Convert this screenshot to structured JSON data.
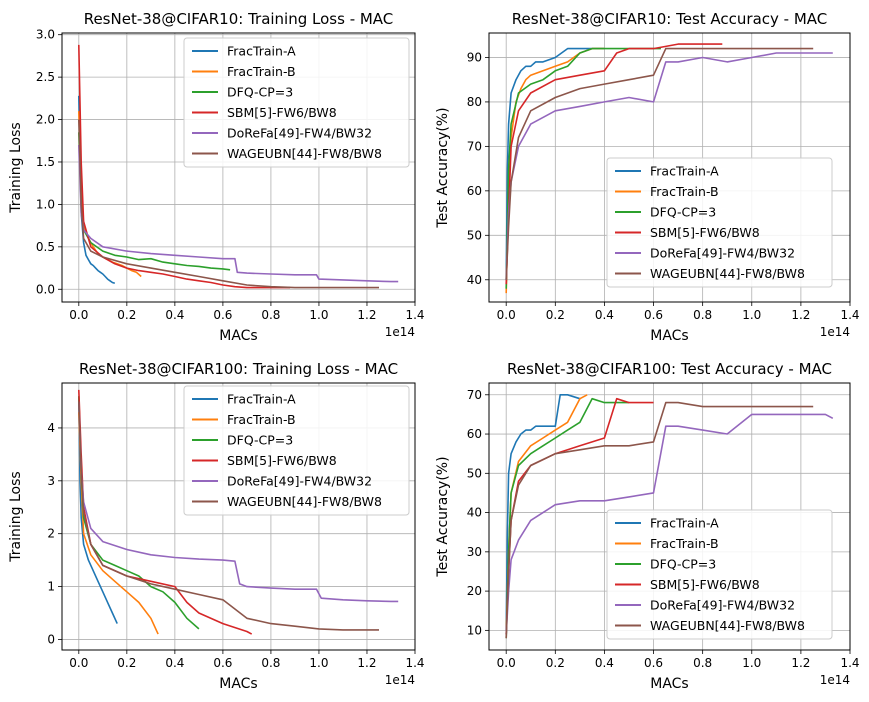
{
  "chart_data": [
    {
      "type": "line",
      "title": "ResNet-38@CIFAR10: Training Loss - MAC",
      "xlabel": "MACs",
      "ylabel": "Training Loss",
      "x_offset_label": "1e14",
      "xlim": [
        -0.07,
        1.4
      ],
      "ylim": [
        -0.15,
        3.02
      ],
      "xticks": [
        0.0,
        0.2,
        0.4,
        0.6,
        0.8,
        1.0,
        1.2,
        1.4
      ],
      "xtick_labels": [
        "0.0",
        "0.2",
        "0.4",
        "0.6",
        "0.8",
        "1.0",
        "1.2",
        "1.4"
      ],
      "yticks": [
        0.0,
        0.5,
        1.0,
        1.5,
        2.0,
        2.5,
        3.0
      ],
      "ytick_labels": [
        "0.0",
        "0.5",
        "1.0",
        "1.5",
        "2.0",
        "2.5",
        "3.0"
      ],
      "grid": true,
      "legend_position": "top-right",
      "series": [
        {
          "name": "FracTrain-A",
          "color": "#1f77b4",
          "x": [
            0.0,
            0.005,
            0.01,
            0.02,
            0.03,
            0.04,
            0.05,
            0.06,
            0.07,
            0.08,
            0.09,
            0.1,
            0.11,
            0.12,
            0.13,
            0.14,
            0.15
          ],
          "y": [
            2.28,
            1.6,
            0.9,
            0.55,
            0.4,
            0.35,
            0.3,
            0.28,
            0.25,
            0.22,
            0.2,
            0.18,
            0.15,
            0.12,
            0.1,
            0.08,
            0.07
          ]
        },
        {
          "name": "FracTrain-B",
          "color": "#ff7f0e",
          "x": [
            0.0,
            0.01,
            0.02,
            0.04,
            0.06,
            0.08,
            0.1,
            0.12,
            0.14,
            0.16,
            0.18,
            0.2,
            0.22,
            0.24,
            0.26
          ],
          "y": [
            2.1,
            1.2,
            0.75,
            0.6,
            0.5,
            0.42,
            0.38,
            0.35,
            0.32,
            0.3,
            0.28,
            0.25,
            0.22,
            0.2,
            0.15
          ]
        },
        {
          "name": "DFQ-CP=3",
          "color": "#2ca02c",
          "x": [
            0.0,
            0.01,
            0.02,
            0.05,
            0.1,
            0.15,
            0.2,
            0.25,
            0.3,
            0.35,
            0.4,
            0.45,
            0.5,
            0.55,
            0.6,
            0.63
          ],
          "y": [
            1.85,
            1.0,
            0.7,
            0.55,
            0.45,
            0.4,
            0.38,
            0.35,
            0.36,
            0.32,
            0.3,
            0.28,
            0.27,
            0.25,
            0.24,
            0.23
          ]
        },
        {
          "name": "SBM[5]-FW6/BW8",
          "color": "#d62728",
          "x": [
            0.0,
            0.01,
            0.02,
            0.05,
            0.1,
            0.15,
            0.2,
            0.25,
            0.3,
            0.35,
            0.4,
            0.45,
            0.5,
            0.55,
            0.6,
            0.65,
            0.7,
            0.75,
            0.8,
            0.85,
            0.88
          ],
          "y": [
            2.88,
            1.5,
            0.8,
            0.5,
            0.38,
            0.3,
            0.25,
            0.22,
            0.2,
            0.18,
            0.15,
            0.12,
            0.1,
            0.08,
            0.05,
            0.03,
            0.02,
            0.02,
            0.02,
            0.02,
            0.02
          ]
        },
        {
          "name": "DoReFa[49]-FW4/BW32",
          "color": "#9467bd",
          "x": [
            0.0,
            0.01,
            0.02,
            0.05,
            0.1,
            0.2,
            0.3,
            0.4,
            0.5,
            0.6,
            0.65,
            0.66,
            0.7,
            0.8,
            0.9,
            0.99,
            1.0,
            1.1,
            1.2,
            1.3,
            1.33
          ],
          "y": [
            1.7,
            0.9,
            0.7,
            0.6,
            0.5,
            0.45,
            0.42,
            0.4,
            0.38,
            0.36,
            0.36,
            0.2,
            0.19,
            0.18,
            0.17,
            0.17,
            0.12,
            0.11,
            0.1,
            0.09,
            0.09
          ]
        },
        {
          "name": "WAGEUBN[44]-FW8/BW8",
          "color": "#8c564b",
          "x": [
            0.0,
            0.01,
            0.02,
            0.05,
            0.1,
            0.2,
            0.3,
            0.4,
            0.5,
            0.6,
            0.7,
            0.8,
            0.9,
            1.0,
            1.1,
            1.2,
            1.25
          ],
          "y": [
            2.0,
            1.0,
            0.6,
            0.45,
            0.38,
            0.3,
            0.25,
            0.2,
            0.15,
            0.1,
            0.05,
            0.03,
            0.02,
            0.02,
            0.02,
            0.02,
            0.02
          ]
        }
      ]
    },
    {
      "type": "line",
      "title": "ResNet-38@CIFAR10: Test Accuracy - MAC",
      "xlabel": "MACs",
      "ylabel": "Test Accuracy(%)",
      "x_offset_label": "1e14",
      "xlim": [
        -0.07,
        1.4
      ],
      "ylim": [
        35,
        95.5
      ],
      "xticks": [
        0.0,
        0.2,
        0.4,
        0.6,
        0.8,
        1.0,
        1.2,
        1.4
      ],
      "xtick_labels": [
        "0.0",
        "0.2",
        "0.4",
        "0.6",
        "0.8",
        "1.0",
        "1.2",
        "1.4"
      ],
      "yticks": [
        40,
        50,
        60,
        70,
        80,
        90
      ],
      "ytick_labels": [
        "40",
        "50",
        "60",
        "70",
        "80",
        "90"
      ],
      "grid": true,
      "legend_position": "bottom-right",
      "series": [
        {
          "name": "FracTrain-A",
          "color": "#1f77b4",
          "x": [
            0.0,
            0.005,
            0.01,
            0.02,
            0.04,
            0.06,
            0.08,
            0.1,
            0.12,
            0.15,
            0.2,
            0.25,
            0.3,
            0.35,
            0.4
          ],
          "y": [
            40,
            65,
            75,
            82,
            85,
            87,
            88,
            88,
            89,
            89,
            90,
            92,
            92,
            92,
            92
          ]
        },
        {
          "name": "FracTrain-B",
          "color": "#ff7f0e",
          "x": [
            0.0,
            0.01,
            0.02,
            0.04,
            0.06,
            0.08,
            0.1,
            0.15,
            0.2,
            0.25,
            0.3,
            0.35,
            0.4
          ],
          "y": [
            37,
            60,
            72,
            80,
            83,
            85,
            86,
            87,
            88,
            89,
            91,
            92,
            92
          ]
        },
        {
          "name": "DFQ-CP=3",
          "color": "#2ca02c",
          "x": [
            0.0,
            0.01,
            0.02,
            0.05,
            0.1,
            0.15,
            0.2,
            0.25,
            0.3,
            0.35,
            0.4,
            0.5,
            0.6,
            0.63
          ],
          "y": [
            38,
            65,
            75,
            82,
            84,
            85,
            87,
            88,
            91,
            92,
            92,
            92,
            92,
            92
          ]
        },
        {
          "name": "SBM[5]-FW6/BW8",
          "color": "#d62728",
          "x": [
            0.0,
            0.01,
            0.02,
            0.05,
            0.1,
            0.2,
            0.3,
            0.4,
            0.45,
            0.5,
            0.6,
            0.7,
            0.8,
            0.88
          ],
          "y": [
            39,
            55,
            70,
            78,
            82,
            85,
            86,
            87,
            91,
            92,
            92,
            93,
            93,
            93
          ]
        },
        {
          "name": "DoReFa[49]-FW4/BW32",
          "color": "#9467bd",
          "x": [
            0.0,
            0.01,
            0.02,
            0.05,
            0.1,
            0.2,
            0.3,
            0.4,
            0.5,
            0.6,
            0.65,
            0.7,
            0.8,
            0.9,
            1.0,
            1.1,
            1.2,
            1.3,
            1.33
          ],
          "y": [
            40,
            55,
            62,
            70,
            75,
            78,
            79,
            80,
            81,
            80,
            89,
            89,
            90,
            89,
            90,
            91,
            91,
            91,
            91
          ]
        },
        {
          "name": "WAGEUBN[44]-FW8/BW8",
          "color": "#8c564b",
          "x": [
            0.0,
            0.01,
            0.02,
            0.05,
            0.1,
            0.2,
            0.3,
            0.4,
            0.5,
            0.6,
            0.65,
            0.7,
            0.8,
            0.9,
            1.0,
            1.1,
            1.2,
            1.25
          ],
          "y": [
            40,
            52,
            62,
            72,
            78,
            81,
            83,
            84,
            85,
            86,
            92,
            92,
            92,
            92,
            92,
            92,
            92,
            92
          ]
        }
      ]
    },
    {
      "type": "line",
      "title": "ResNet-38@CIFAR100: Training Loss - MAC",
      "xlabel": "MACs",
      "ylabel": "Training Loss",
      "x_offset_label": "1e14",
      "xlim": [
        -0.07,
        1.4
      ],
      "ylim": [
        -0.2,
        4.85
      ],
      "xticks": [
        0.0,
        0.2,
        0.4,
        0.6,
        0.8,
        1.0,
        1.2,
        1.4
      ],
      "xtick_labels": [
        "0.0",
        "0.2",
        "0.4",
        "0.6",
        "0.8",
        "1.0",
        "1.2",
        "1.4"
      ],
      "yticks": [
        0,
        1,
        2,
        3,
        4
      ],
      "ytick_labels": [
        "0",
        "1",
        "2",
        "3",
        "4"
      ],
      "grid": true,
      "legend_position": "top-right",
      "series": [
        {
          "name": "FracTrain-A",
          "color": "#1f77b4",
          "x": [
            0.0,
            0.005,
            0.01,
            0.02,
            0.04,
            0.06,
            0.08,
            0.1,
            0.12,
            0.14,
            0.16
          ],
          "y": [
            4.6,
            3.0,
            2.3,
            1.8,
            1.5,
            1.3,
            1.1,
            0.9,
            0.7,
            0.5,
            0.3
          ]
        },
        {
          "name": "FracTrain-B",
          "color": "#ff7f0e",
          "x": [
            0.0,
            0.01,
            0.02,
            0.05,
            0.1,
            0.15,
            0.2,
            0.25,
            0.3,
            0.33
          ],
          "y": [
            4.3,
            3.0,
            2.0,
            1.6,
            1.3,
            1.1,
            0.9,
            0.7,
            0.4,
            0.1
          ]
        },
        {
          "name": "DFQ-CP=3",
          "color": "#2ca02c",
          "x": [
            0.0,
            0.01,
            0.02,
            0.05,
            0.1,
            0.15,
            0.2,
            0.25,
            0.3,
            0.35,
            0.4,
            0.45,
            0.5
          ],
          "y": [
            4.6,
            3.2,
            2.3,
            1.8,
            1.5,
            1.4,
            1.3,
            1.2,
            1.0,
            0.9,
            0.7,
            0.4,
            0.2
          ]
        },
        {
          "name": "SBM[5]-FW6/BW8",
          "color": "#d62728",
          "x": [
            0.0,
            0.01,
            0.02,
            0.05,
            0.1,
            0.2,
            0.3,
            0.4,
            0.45,
            0.5,
            0.6,
            0.7,
            0.72
          ],
          "y": [
            4.72,
            3.5,
            2.5,
            1.8,
            1.4,
            1.2,
            1.1,
            1.0,
            0.7,
            0.5,
            0.3,
            0.15,
            0.1
          ]
        },
        {
          "name": "DoReFa[49]-FW4/BW32",
          "color": "#9467bd",
          "x": [
            0.0,
            0.01,
            0.02,
            0.05,
            0.1,
            0.2,
            0.3,
            0.4,
            0.5,
            0.6,
            0.65,
            0.67,
            0.7,
            0.8,
            0.9,
            0.99,
            1.01,
            1.1,
            1.2,
            1.3,
            1.33
          ],
          "y": [
            4.5,
            3.2,
            2.6,
            2.1,
            1.85,
            1.7,
            1.6,
            1.55,
            1.52,
            1.5,
            1.48,
            1.05,
            1.0,
            0.97,
            0.95,
            0.95,
            0.78,
            0.75,
            0.73,
            0.72,
            0.72
          ]
        },
        {
          "name": "WAGEUBN[44]-FW8/BW8",
          "color": "#8c564b",
          "x": [
            0.0,
            0.01,
            0.02,
            0.05,
            0.1,
            0.2,
            0.3,
            0.4,
            0.5,
            0.6,
            0.7,
            0.8,
            0.9,
            1.0,
            1.1,
            1.2,
            1.25
          ],
          "y": [
            4.5,
            3.2,
            2.4,
            1.8,
            1.4,
            1.2,
            1.05,
            0.95,
            0.85,
            0.75,
            0.4,
            0.3,
            0.25,
            0.2,
            0.18,
            0.18,
            0.18
          ]
        }
      ]
    },
    {
      "type": "line",
      "title": "ResNet-38@CIFAR100: Test Accuracy - MAC",
      "xlabel": "MACs",
      "ylabel": "Test Accuracy(%)",
      "x_offset_label": "1e14",
      "xlim": [
        -0.07,
        1.4
      ],
      "ylim": [
        5,
        73
      ],
      "xticks": [
        0.0,
        0.2,
        0.4,
        0.6,
        0.8,
        1.0,
        1.2,
        1.4
      ],
      "xtick_labels": [
        "0.0",
        "0.2",
        "0.4",
        "0.6",
        "0.8",
        "1.0",
        "1.2",
        "1.4"
      ],
      "yticks": [
        10,
        20,
        30,
        40,
        50,
        60,
        70
      ],
      "ytick_labels": [
        "10",
        "20",
        "30",
        "40",
        "50",
        "60",
        "70"
      ],
      "grid": true,
      "legend_position": "bottom-right",
      "series": [
        {
          "name": "FracTrain-A",
          "color": "#1f77b4",
          "x": [
            0.0,
            0.005,
            0.01,
            0.02,
            0.04,
            0.06,
            0.08,
            0.1,
            0.12,
            0.15,
            0.2,
            0.22,
            0.25,
            0.3
          ],
          "y": [
            10,
            35,
            50,
            55,
            58,
            60,
            61,
            61,
            62,
            62,
            62,
            70,
            70,
            69
          ]
        },
        {
          "name": "FracTrain-B",
          "color": "#ff7f0e",
          "x": [
            0.0,
            0.01,
            0.02,
            0.05,
            0.1,
            0.15,
            0.2,
            0.25,
            0.3,
            0.33
          ],
          "y": [
            9,
            30,
            45,
            53,
            57,
            59,
            61,
            63,
            69,
            70
          ]
        },
        {
          "name": "DFQ-CP=3",
          "color": "#2ca02c",
          "x": [
            0.0,
            0.01,
            0.02,
            0.05,
            0.1,
            0.15,
            0.2,
            0.25,
            0.3,
            0.35,
            0.4,
            0.45,
            0.5
          ],
          "y": [
            8,
            30,
            45,
            52,
            55,
            57,
            59,
            61,
            63,
            69,
            68,
            68,
            68
          ]
        },
        {
          "name": "SBM[5]-FW6/BW8",
          "color": "#d62728",
          "x": [
            0.0,
            0.01,
            0.02,
            0.05,
            0.1,
            0.2,
            0.3,
            0.4,
            0.45,
            0.5,
            0.6
          ],
          "y": [
            9,
            25,
            38,
            48,
            52,
            55,
            57,
            59,
            69,
            68,
            68
          ]
        },
        {
          "name": "DoReFa[49]-FW4/BW32",
          "color": "#9467bd",
          "x": [
            0.0,
            0.01,
            0.02,
            0.05,
            0.1,
            0.2,
            0.3,
            0.4,
            0.5,
            0.6,
            0.65,
            0.7,
            0.8,
            0.9,
            1.0,
            1.1,
            1.2,
            1.3,
            1.33
          ],
          "y": [
            9,
            20,
            28,
            33,
            38,
            42,
            43,
            43,
            44,
            45,
            62,
            62,
            61,
            60,
            65,
            65,
            65,
            65,
            64
          ]
        },
        {
          "name": "WAGEUBN[44]-FW8/BW8",
          "color": "#8c564b",
          "x": [
            0.0,
            0.01,
            0.02,
            0.05,
            0.1,
            0.2,
            0.3,
            0.4,
            0.5,
            0.6,
            0.65,
            0.7,
            0.8,
            0.9,
            1.0,
            1.1,
            1.2,
            1.25
          ],
          "y": [
            8,
            25,
            38,
            47,
            52,
            55,
            56,
            57,
            57,
            58,
            68,
            68,
            67,
            67,
            67,
            67,
            67,
            67
          ]
        }
      ]
    }
  ]
}
